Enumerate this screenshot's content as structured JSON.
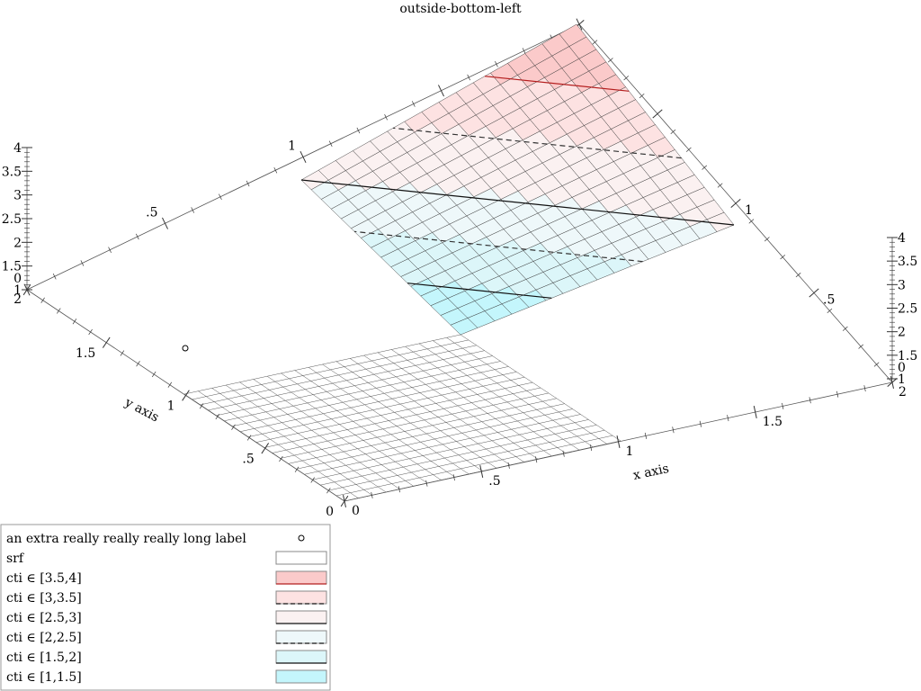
{
  "chart_data": {
    "type": "surface-3d",
    "title": "outside-bottom-left",
    "xlabel": "x axis",
    "ylabel": "y axis",
    "x_range": [
      0,
      2
    ],
    "y_range": [
      0,
      2
    ],
    "z_range": [
      0,
      4
    ],
    "x_ticks": [
      "0",
      ".5",
      "1",
      "1.5",
      "2"
    ],
    "y_ticks": [
      "0",
      ".5",
      "1",
      "1.5",
      "2"
    ],
    "z_ticks": [
      "0",
      "1",
      "1.5",
      "2",
      "2.5",
      "3",
      "3.5",
      "4"
    ],
    "top_x_ticks": [
      ".5",
      "1"
    ],
    "right_y_ticks": [
      ".5",
      "1"
    ],
    "legend_position": "outside-bottom-left",
    "surfaces": [
      {
        "name": "srf",
        "x_range": [
          0,
          1
        ],
        "y_range": [
          0,
          1
        ],
        "z": 0
      },
      {
        "name": "cti",
        "x_range": [
          1,
          2
        ],
        "y_range": [
          1,
          2
        ],
        "z_range": [
          1,
          4
        ]
      }
    ],
    "extra_point": {
      "label": "an extra really really really long label",
      "marker": "circle"
    },
    "contour_intervals": [
      {
        "label": "cti ∈ [3.5,4]",
        "color": "#fbcaca",
        "line": "solid",
        "line_color": "#b41e1e"
      },
      {
        "label": "cti ∈ [3,3.5]",
        "color": "#fde2e2",
        "line": "dashed",
        "line_color": "#333333"
      },
      {
        "label": "cti ∈ [2.5,3]",
        "color": "#fbf1f1",
        "line": "solid",
        "line_color": "#111111"
      },
      {
        "label": "cti ∈ [2,2.5]",
        "color": "#eef8fa",
        "line": "dashed",
        "line_color": "#333333"
      },
      {
        "label": "cti ∈ [1.5,2]",
        "color": "#dcf6f9",
        "line": "solid",
        "line_color": "#111111"
      },
      {
        "label": "cti ∈ [1,1.5]",
        "color": "#c4f6fc",
        "line": "none",
        "line_color": "#111111"
      }
    ],
    "legend": [
      {
        "label": "an extra really really really long label",
        "swatch": "point"
      },
      {
        "label": "srf",
        "swatch": "box",
        "color": "#ffffff"
      },
      {
        "label": "cti ∈ [3.5,4]",
        "swatch": "box",
        "color": "#fbcaca",
        "line": "solid",
        "line_color": "#b41e1e"
      },
      {
        "label": "cti ∈ [3,3.5]",
        "swatch": "box",
        "color": "#fde2e2",
        "line": "dashed"
      },
      {
        "label": "cti ∈ [2.5,3]",
        "swatch": "box",
        "color": "#fbf1f1",
        "line": "solid"
      },
      {
        "label": "cti ∈ [2,2.5]",
        "swatch": "box",
        "color": "#eef8fa",
        "line": "dashed"
      },
      {
        "label": "cti ∈ [1.5,2]",
        "swatch": "box",
        "color": "#dcf6f9",
        "line": "solid"
      },
      {
        "label": "cti ∈ [1,1.5]",
        "swatch": "box",
        "color": "#c4f6fc",
        "line": "none"
      }
    ]
  }
}
